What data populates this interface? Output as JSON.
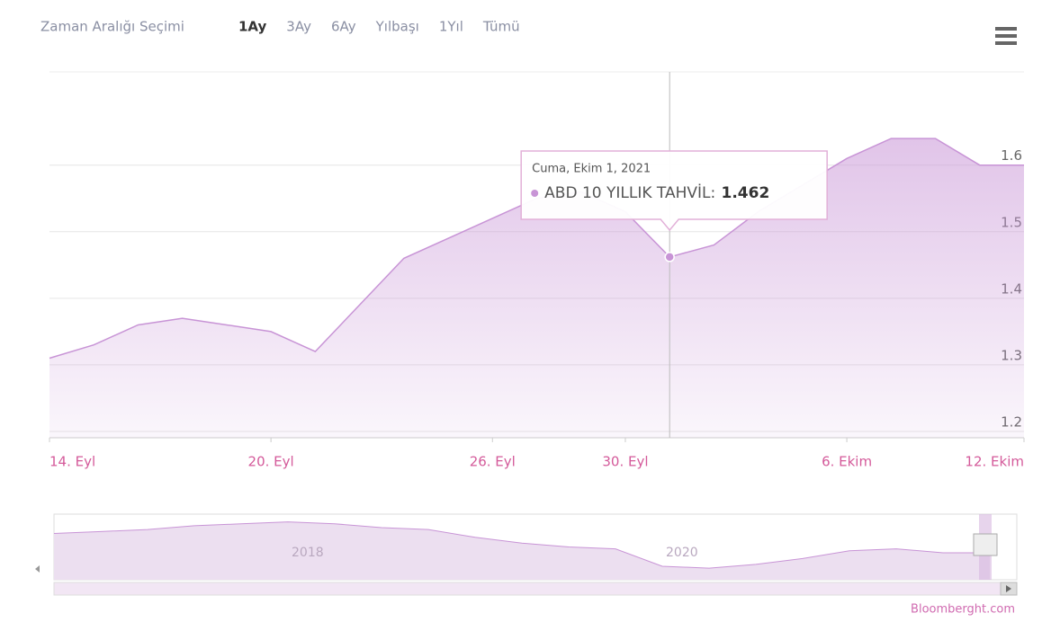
{
  "chart_data": {
    "type": "area",
    "range_selector": {
      "label": "Zaman Aralığı Seçimi",
      "buttons": [
        "1Ay",
        "3Ay",
        "6Ay",
        "Yılbaşı",
        "1Yıl",
        "Tümü"
      ]
    },
    "categories": [
      "14. Eyl",
      null,
      null,
      null,
      null,
      "20. Eyl",
      null,
      null,
      null,
      null,
      "26. Eyl",
      null,
      null,
      "30. Eyl",
      null,
      null,
      null,
      null,
      "6. Ekim",
      null,
      null,
      null,
      "12. Ekim"
    ],
    "series": [
      {
        "name": "ABD 10 YILLIK TAHVİL",
        "color": "#c894d6",
        "values": [
          1.31,
          1.33,
          1.36,
          1.37,
          1.36,
          1.35,
          1.32,
          1.39,
          1.46,
          1.49,
          1.52,
          1.55,
          1.56,
          1.53,
          1.462,
          1.48,
          1.53,
          1.57,
          1.61,
          1.64,
          1.64,
          1.6,
          1.6
        ]
      }
    ],
    "ylim": [
      1.2,
      1.74
    ],
    "yticks": [
      1.2,
      1.3,
      1.4,
      1.5,
      1.6
    ],
    "grid": true,
    "tooltip": {
      "title": "Cuma, Ekim 1, 2021"
    },
    "navigator": {
      "categories": [
        null,
        null,
        null,
        null,
        null,
        "2018",
        null,
        null,
        null,
        null,
        null,
        null,
        null,
        "2020",
        null,
        null,
        null,
        null,
        null,
        null,
        null
      ],
      "values": [
        2.4,
        2.5,
        2.6,
        2.8,
        2.9,
        3.0,
        2.9,
        2.7,
        2.6,
        2.2,
        1.9,
        1.7,
        1.6,
        0.7,
        0.6,
        0.8,
        1.1,
        1.5,
        1.6,
        1.4,
        1.4
      ],
      "ylim": [
        0,
        3.4
      ]
    },
    "credit": "Bloomberght.com"
  }
}
